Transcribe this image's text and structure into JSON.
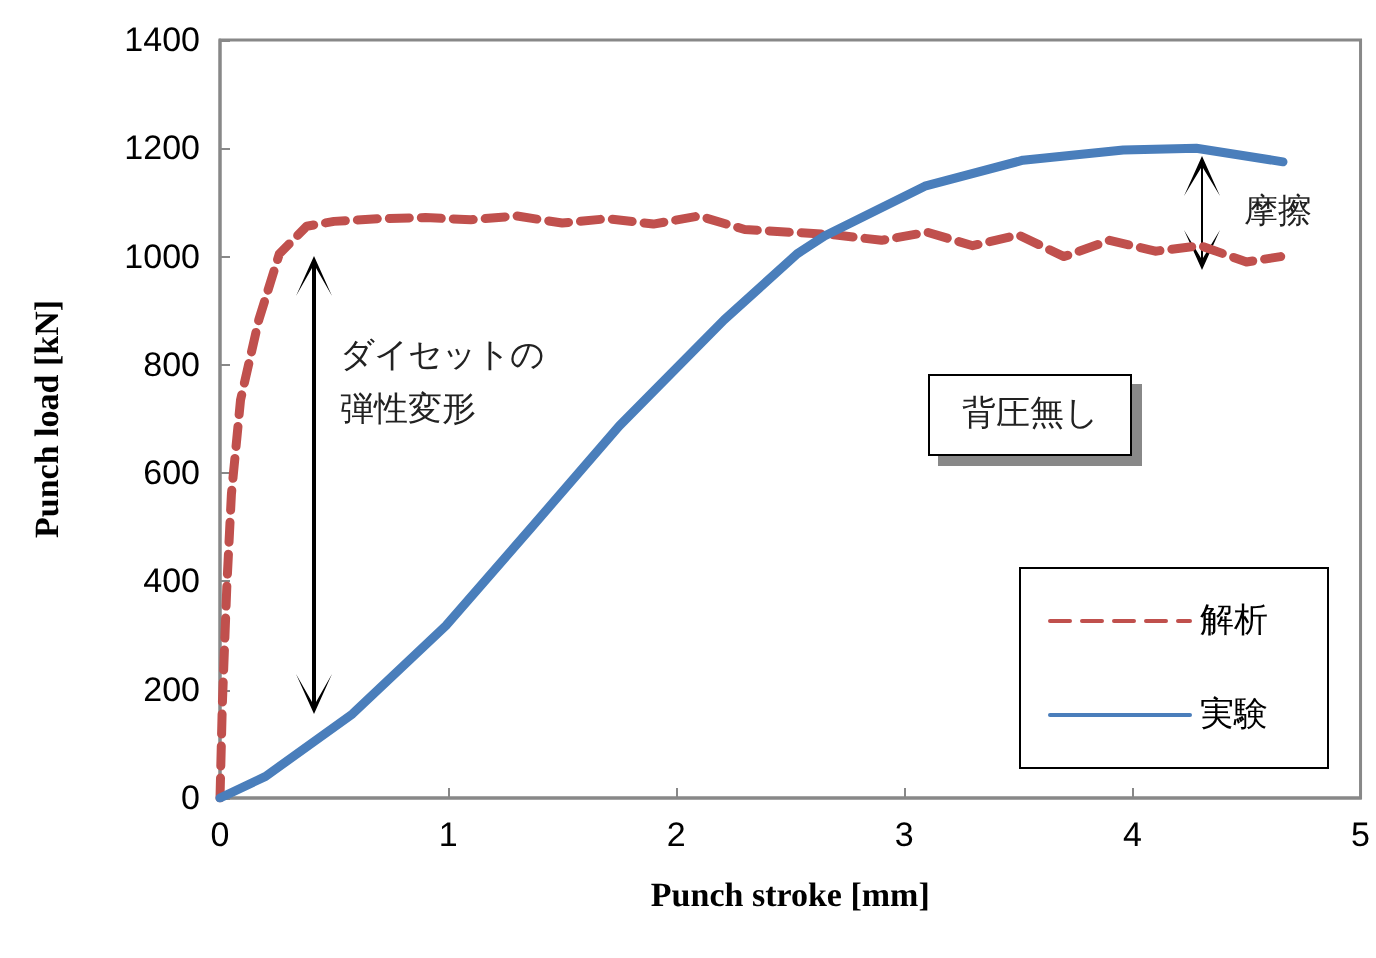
{
  "chart_data": {
    "type": "line",
    "xlabel": "Punch stroke [mm]",
    "ylabel": "Punch load [kN]",
    "xlim": [
      0,
      5
    ],
    "xticks": [
      0,
      1,
      2,
      3,
      4,
      5
    ],
    "ylim": [
      0,
      1400
    ],
    "yticks": [
      0,
      200,
      400,
      600,
      800,
      1000,
      1200,
      1400
    ],
    "grid": false,
    "legend": "bottom right",
    "marker": "none",
    "series": [
      {
        "name": "解析",
        "color": "#c0504d",
        "line_style": "dashed",
        "x": [
          0,
          0.01,
          0.03,
          0.05,
          0.09,
          0.17,
          0.26,
          0.38,
          0.5,
          0.7,
          0.9,
          1.1,
          1.3,
          1.5,
          1.7,
          1.9,
          2.1,
          2.3,
          2.5,
          2.7,
          2.9,
          3.1,
          3.3,
          3.5,
          3.7,
          3.9,
          4.1,
          4.3,
          4.5,
          4.65
        ],
        "values": [
          0,
          170,
          392,
          561,
          735,
          883,
          1005,
          1056,
          1065,
          1070,
          1072,
          1068,
          1075,
          1062,
          1070,
          1060,
          1075,
          1050,
          1045,
          1040,
          1030,
          1045,
          1020,
          1040,
          1000,
          1030,
          1010,
          1020,
          990,
          1000
        ]
      },
      {
        "name": "実験",
        "color": "#4a7ebb",
        "line_style": "solid",
        "x": [
          0,
          0.2,
          0.58,
          0.99,
          1.37,
          1.75,
          2.21,
          2.53,
          2.65,
          3.09,
          3.52,
          3.96,
          4.28,
          4.66
        ],
        "values": [
          0,
          40,
          155,
          318,
          502,
          687,
          883,
          1005,
          1038,
          1130,
          1178,
          1197,
          1200,
          1175
        ]
      }
    ],
    "annotations": [
      "ダイセットの弾性変形",
      "摩擦",
      "背圧無し"
    ]
  }
}
